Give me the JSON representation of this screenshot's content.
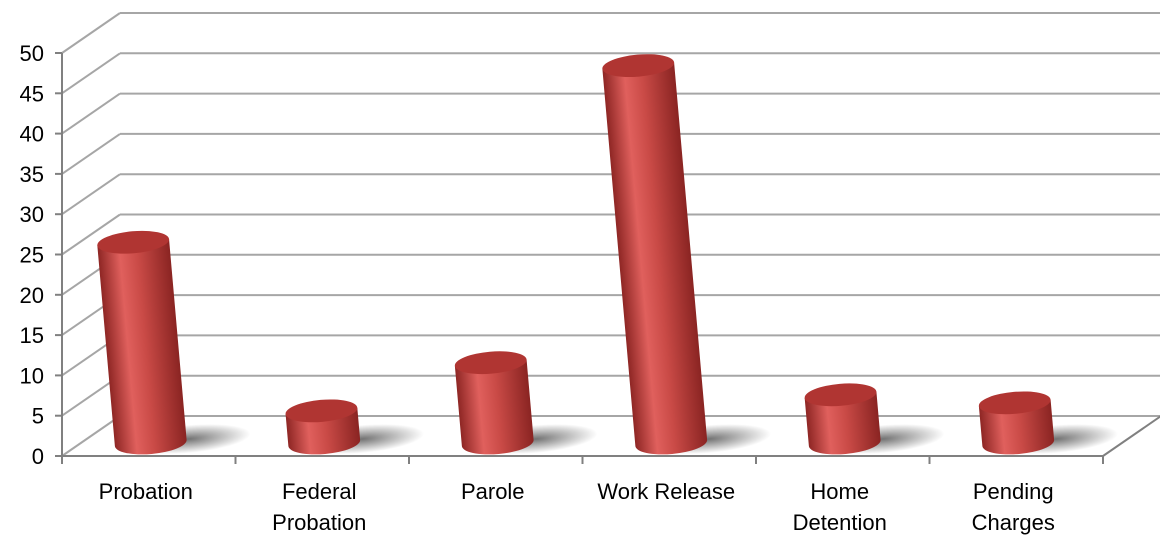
{
  "chart_data": {
    "type": "bar",
    "style": "3d-cylinder",
    "categories": [
      [
        "Probation"
      ],
      [
        "Federal",
        "Probation"
      ],
      [
        "Parole"
      ],
      [
        "Work Release"
      ],
      [
        "Home",
        "Detention"
      ],
      [
        "Pending",
        "Charges"
      ]
    ],
    "series": [
      {
        "values": [
          25,
          4,
          10,
          47,
          6,
          5
        ]
      }
    ],
    "yticks": [
      "0",
      "5",
      "10",
      "15",
      "20",
      "25",
      "30",
      "35",
      "40",
      "45",
      "50"
    ],
    "ylim": [
      0,
      50
    ],
    "grid": true,
    "legend": "none",
    "colors": {
      "bar_light": "#e0605d",
      "bar_mid": "#c0403c",
      "bar_dark": "#8e2624",
      "bar_top": "#b03532",
      "grid": "#a6a6a6",
      "axis": "#808080"
    }
  }
}
